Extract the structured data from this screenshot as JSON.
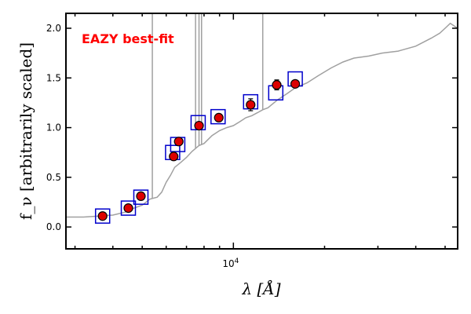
{
  "chart_data": {
    "type": "scatter",
    "title": "",
    "xlabel": "λ [Å]",
    "ylabel": "f_ν [arbitrarily scaled]",
    "xscale": "log",
    "xlim": [
      2800,
      55000
    ],
    "ylim": [
      -0.22,
      2.15
    ],
    "grid": false,
    "x_ticks": [
      {
        "value": 10000,
        "label": "10^4"
      }
    ],
    "y_ticks": [
      0.0,
      0.5,
      1.0,
      1.5,
      2.0
    ],
    "y_tick_labels": [
      "0.0",
      "0.5",
      "1.0",
      "1.5",
      "2.0"
    ],
    "annotation": {
      "text": "EAZY best-fit",
      "color": "#ff0000",
      "position": "top-left"
    },
    "colors": {
      "template": "#a0a0a0",
      "model": "#0000cc",
      "observed_fill": "#dd0000",
      "observed_edge": "#000000",
      "errorbar": "#000000"
    },
    "series": [
      {
        "kind": "line",
        "x": [
          2800,
          3200,
          3600,
          4000,
          4400,
          4700,
          5000,
          5300,
          5600,
          5800,
          6000,
          6200,
          6400,
          6700,
          7000,
          7300,
          7700,
          8000,
          8500,
          9000,
          9500,
          10000,
          10500,
          11000,
          11500,
          12000,
          12500,
          13000,
          14000,
          15000,
          16000,
          17500,
          19000,
          21000,
          23000,
          25000,
          28000,
          31000,
          35000,
          40000,
          45000,
          48000,
          50000,
          52000,
          55000
        ],
        "y": [
          0.1,
          0.1,
          0.11,
          0.12,
          0.15,
          0.19,
          0.22,
          0.28,
          0.3,
          0.35,
          0.45,
          0.52,
          0.6,
          0.65,
          0.7,
          0.76,
          0.82,
          0.84,
          0.92,
          0.97,
          1.0,
          1.02,
          1.06,
          1.1,
          1.12,
          1.15,
          1.18,
          1.2,
          1.28,
          1.34,
          1.4,
          1.45,
          1.52,
          1.6,
          1.66,
          1.7,
          1.72,
          1.75,
          1.77,
          1.82,
          1.9,
          1.95,
          2.0,
          2.05,
          2.0
        ]
      },
      {
        "kind": "emission_lines",
        "x": [
          5400,
          7500,
          7700,
          7850,
          12500
        ],
        "y_top": [
          2.15,
          2.15,
          2.15,
          2.15,
          2.15
        ]
      },
      {
        "kind": "squares",
        "x": [
          3700,
          4500,
          4950,
          6300,
          6550,
          7650,
          8900,
          11400,
          13800,
          16000
        ],
        "y": [
          0.11,
          0.19,
          0.3,
          0.75,
          0.83,
          1.05,
          1.11,
          1.26,
          1.35,
          1.49
        ]
      },
      {
        "kind": "points",
        "x": [
          3700,
          4500,
          4950,
          6350,
          6600,
          7700,
          8950,
          11400,
          13900,
          16000
        ],
        "y": [
          0.11,
          0.19,
          0.31,
          0.71,
          0.86,
          1.02,
          1.1,
          1.23,
          1.43,
          1.44
        ],
        "yerr": [
          0.0,
          0.0,
          0.0,
          0.0,
          0.0,
          0.0,
          0.0,
          0.06,
          0.05,
          0.02
        ]
      }
    ]
  }
}
